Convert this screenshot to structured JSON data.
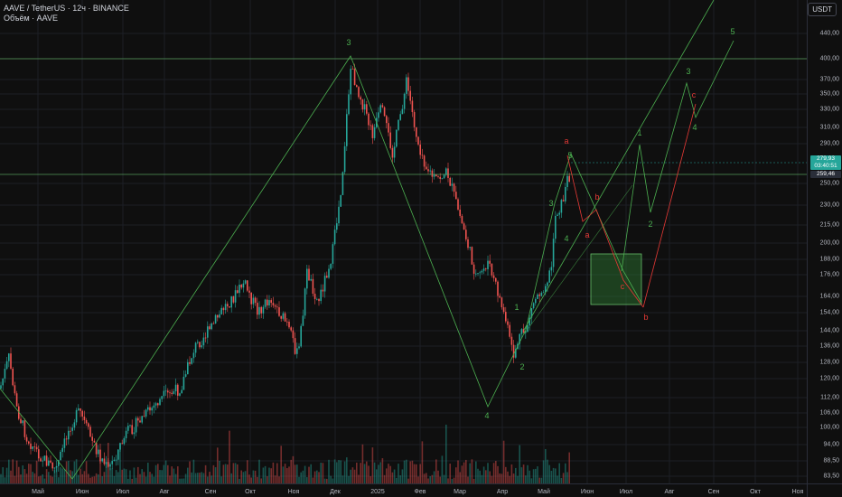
{
  "header": {
    "symbol_line": "AAVE / TetherUS · 12ч · BINANCE",
    "volume_line": "Объём · AAVE"
  },
  "price_scale": {
    "currency": "USDT",
    "ticks": [
      "440,00",
      "400,00",
      "370,00",
      "350,00",
      "330,00",
      "310,00",
      "290,00",
      "250,00",
      "230,00",
      "215,00",
      "200,00",
      "188,00",
      "176,00",
      "164,00",
      "154,00",
      "144,00",
      "136,00",
      "128,00",
      "120,00",
      "112,00",
      "106,00",
      "100,00",
      "94,00",
      "88,50",
      "83,50"
    ],
    "current_price": "279,93",
    "countdown": "03:40:51",
    "level_label": "259,46"
  },
  "time_scale": {
    "ticks": [
      "Май",
      "Июн",
      "Июл",
      "Авг",
      "Сен",
      "Окт",
      "Ноя",
      "Дек",
      "2025",
      "Фев",
      "Мар",
      "Апр",
      "Май",
      "Июн",
      "Июл",
      "Авг",
      "Сен",
      "Окт",
      "Ноя"
    ]
  },
  "wave_labels": [
    {
      "text": "3",
      "color": "green"
    },
    {
      "text": "4",
      "color": "green"
    },
    {
      "text": "1",
      "color": "green"
    },
    {
      "text": "2",
      "color": "green"
    },
    {
      "text": "3",
      "color": "green"
    },
    {
      "text": "4",
      "color": "green"
    },
    {
      "text": "5",
      "color": "green"
    },
    {
      "text": "a",
      "color": "red"
    },
    {
      "text": "a",
      "color": "red"
    },
    {
      "text": "b",
      "color": "red"
    },
    {
      "text": "c",
      "color": "red"
    },
    {
      "text": "b",
      "color": "red"
    },
    {
      "text": "1",
      "color": "green"
    },
    {
      "text": "2",
      "color": "green"
    },
    {
      "text": "3",
      "color": "green"
    },
    {
      "text": "4",
      "color": "green"
    },
    {
      "text": "5",
      "color": "green"
    },
    {
      "text": "c",
      "color": "red"
    }
  ],
  "colors": {
    "background": "#0f0f0f",
    "up_candle": "#26a69a",
    "down_candle": "#ef5350",
    "wave_green": "#4caf50",
    "wave_red": "#e53935",
    "target_box": "#2e7d32",
    "current_price_tag": "#26a69a"
  }
}
